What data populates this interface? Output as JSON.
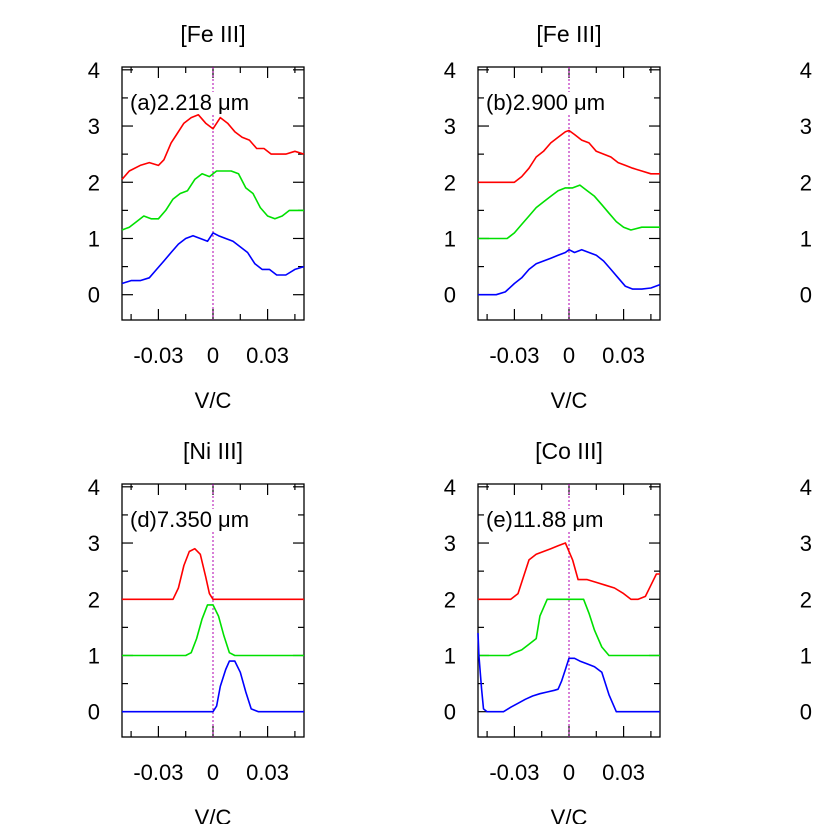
{
  "chart_data": [
    {
      "type": "line",
      "title": "[Fe III]",
      "annotation": "(a)2.218 μm",
      "xlabel": "V/C",
      "ylabel": "",
      "xlim": [
        -0.05,
        0.05
      ],
      "ylim": [
        -0.45,
        4.05
      ],
      "xticks": [
        -0.03,
        0,
        0.03
      ],
      "xtick_labels": [
        "-0.03",
        "0",
        "0.03"
      ],
      "yticks": [
        0,
        1,
        2,
        3,
        4
      ],
      "ytick_labels": [
        "0",
        "1",
        "2",
        "3",
        "4"
      ],
      "reference_line_x": 0,
      "series": [
        {
          "color": "#ff0000",
          "x": [
            -0.05,
            -0.046,
            -0.04,
            -0.035,
            -0.03,
            -0.027,
            -0.023,
            -0.02,
            -0.016,
            -0.012,
            -0.008,
            -0.004,
            0,
            0.004,
            0.008,
            0.012,
            0.016,
            0.02,
            0.024,
            0.028,
            0.032,
            0.036,
            0.04,
            0.045,
            0.05
          ],
          "y": [
            2.05,
            2.2,
            2.3,
            2.35,
            2.3,
            2.4,
            2.7,
            2.85,
            3.05,
            3.15,
            3.2,
            3.05,
            2.95,
            3.15,
            3.05,
            2.9,
            2.8,
            2.75,
            2.6,
            2.6,
            2.5,
            2.5,
            2.5,
            2.55,
            2.5
          ]
        },
        {
          "color": "#00e000",
          "x": [
            -0.05,
            -0.046,
            -0.042,
            -0.038,
            -0.034,
            -0.03,
            -0.026,
            -0.022,
            -0.018,
            -0.014,
            -0.01,
            -0.006,
            -0.002,
            0.002,
            0.006,
            0.01,
            0.014,
            0.018,
            0.022,
            0.026,
            0.03,
            0.034,
            0.038,
            0.042,
            0.046,
            0.05
          ],
          "y": [
            1.15,
            1.2,
            1.3,
            1.4,
            1.35,
            1.35,
            1.5,
            1.7,
            1.8,
            1.85,
            2.05,
            2.15,
            2.1,
            2.2,
            2.2,
            2.2,
            2.15,
            1.9,
            1.8,
            1.55,
            1.4,
            1.35,
            1.4,
            1.5,
            1.5,
            1.5
          ]
        },
        {
          "color": "#0000ff",
          "x": [
            -0.05,
            -0.045,
            -0.04,
            -0.035,
            -0.031,
            -0.027,
            -0.023,
            -0.019,
            -0.015,
            -0.011,
            -0.007,
            -0.003,
            0,
            0.003,
            0.007,
            0.011,
            0.015,
            0.019,
            0.023,
            0.027,
            0.031,
            0.035,
            0.04,
            0.045,
            0.05
          ],
          "y": [
            0.2,
            0.25,
            0.25,
            0.3,
            0.45,
            0.6,
            0.75,
            0.9,
            1.0,
            1.05,
            1.0,
            0.95,
            1.1,
            1.05,
            1.0,
            0.95,
            0.85,
            0.75,
            0.55,
            0.45,
            0.45,
            0.35,
            0.35,
            0.45,
            0.5
          ]
        }
      ]
    },
    {
      "type": "line",
      "title": "[Fe III]",
      "annotation": "(b)2.900 μm",
      "xlabel": "V/C",
      "ylabel": "",
      "xlim": [
        -0.05,
        0.05
      ],
      "ylim": [
        -0.45,
        4.05
      ],
      "xticks": [
        -0.03,
        0,
        0.03
      ],
      "xtick_labels": [
        "-0.03",
        "0",
        "0.03"
      ],
      "yticks": [
        0,
        1,
        2,
        3,
        4
      ],
      "ytick_labels": [
        "0",
        "1",
        "2",
        "3",
        "4"
      ],
      "reference_line_x": 0,
      "series": [
        {
          "color": "#ff0000",
          "x": [
            -0.05,
            -0.04,
            -0.03,
            -0.026,
            -0.022,
            -0.018,
            -0.014,
            -0.01,
            -0.006,
            -0.002,
            0,
            0.003,
            0.007,
            0.011,
            0.015,
            0.019,
            0.023,
            0.027,
            0.031,
            0.035,
            0.04,
            0.045,
            0.05
          ],
          "y": [
            2.0,
            2.0,
            2.0,
            2.1,
            2.25,
            2.45,
            2.55,
            2.7,
            2.8,
            2.9,
            2.92,
            2.85,
            2.75,
            2.7,
            2.55,
            2.5,
            2.45,
            2.35,
            2.3,
            2.25,
            2.2,
            2.15,
            2.15
          ]
        },
        {
          "color": "#00e000",
          "x": [
            -0.05,
            -0.04,
            -0.034,
            -0.03,
            -0.026,
            -0.022,
            -0.018,
            -0.014,
            -0.01,
            -0.006,
            -0.002,
            0.002,
            0.006,
            0.01,
            0.014,
            0.018,
            0.022,
            0.026,
            0.03,
            0.034,
            0.04,
            0.045,
            0.05
          ],
          "y": [
            1.0,
            1.0,
            1.0,
            1.1,
            1.25,
            1.4,
            1.55,
            1.65,
            1.75,
            1.85,
            1.9,
            1.9,
            1.95,
            1.85,
            1.75,
            1.6,
            1.45,
            1.3,
            1.2,
            1.15,
            1.2,
            1.2,
            1.2
          ]
        },
        {
          "color": "#0000ff",
          "x": [
            -0.05,
            -0.04,
            -0.035,
            -0.03,
            -0.026,
            -0.022,
            -0.018,
            -0.014,
            -0.01,
            -0.006,
            -0.002,
            0,
            0.003,
            0.007,
            0.011,
            0.015,
            0.019,
            0.023,
            0.027,
            0.031,
            0.035,
            0.04,
            0.045,
            0.05
          ],
          "y": [
            0.0,
            0.0,
            0.05,
            0.2,
            0.3,
            0.45,
            0.55,
            0.6,
            0.65,
            0.7,
            0.75,
            0.8,
            0.75,
            0.8,
            0.75,
            0.7,
            0.6,
            0.45,
            0.3,
            0.15,
            0.1,
            0.1,
            0.12,
            0.18
          ]
        }
      ]
    },
    {
      "type": "line",
      "title": "[Ni III]",
      "annotation": "(d)7.350 μm",
      "xlabel": "V/C",
      "ylabel": "",
      "xlim": [
        -0.05,
        0.05
      ],
      "ylim": [
        -0.45,
        4.05
      ],
      "xticks": [
        -0.03,
        0,
        0.03
      ],
      "xtick_labels": [
        "-0.03",
        "0",
        "0.03"
      ],
      "yticks": [
        0,
        1,
        2,
        3,
        4
      ],
      "ytick_labels": [
        "0",
        "1",
        "2",
        "3",
        "4"
      ],
      "reference_line_x": 0,
      "series": [
        {
          "color": "#ff0000",
          "x": [
            -0.05,
            -0.03,
            -0.022,
            -0.019,
            -0.016,
            -0.013,
            -0.01,
            -0.007,
            -0.004,
            -0.002,
            0,
            0.002,
            0.01,
            0.03,
            0.05
          ],
          "y": [
            2.0,
            2.0,
            2.0,
            2.2,
            2.6,
            2.85,
            2.9,
            2.8,
            2.4,
            2.1,
            2.0,
            2.0,
            2.0,
            2.0,
            2.0
          ]
        },
        {
          "color": "#00e000",
          "x": [
            -0.05,
            -0.03,
            -0.015,
            -0.012,
            -0.009,
            -0.006,
            -0.003,
            0,
            0.003,
            0.006,
            0.009,
            0.012,
            0.03,
            0.05
          ],
          "y": [
            1.0,
            1.0,
            1.0,
            1.05,
            1.3,
            1.65,
            1.9,
            1.9,
            1.7,
            1.35,
            1.05,
            1.0,
            1.0,
            1.0
          ]
        },
        {
          "color": "#0000ff",
          "x": [
            -0.05,
            -0.03,
            -0.01,
            0,
            0.002,
            0.004,
            0.007,
            0.009,
            0.012,
            0.015,
            0.018,
            0.021,
            0.025,
            0.03,
            0.05
          ],
          "y": [
            0.0,
            0.0,
            0.0,
            0.0,
            0.1,
            0.45,
            0.75,
            0.9,
            0.9,
            0.7,
            0.35,
            0.05,
            0.0,
            0.0,
            0.0
          ]
        }
      ]
    },
    {
      "type": "line",
      "title": "[Co III]",
      "annotation": "(e)11.88 μm",
      "xlabel": "V/C",
      "ylabel": "",
      "xlim": [
        -0.05,
        0.05
      ],
      "ylim": [
        -0.45,
        4.05
      ],
      "xticks": [
        -0.03,
        0,
        0.03
      ],
      "xtick_labels": [
        "-0.03",
        "0",
        "0.03"
      ],
      "yticks": [
        0,
        1,
        2,
        3,
        4
      ],
      "ytick_labels": [
        "0",
        "1",
        "2",
        "3",
        "4"
      ],
      "reference_line_x": 0,
      "series": [
        {
          "color": "#ff0000",
          "x": [
            -0.05,
            -0.04,
            -0.032,
            -0.028,
            -0.025,
            -0.022,
            -0.018,
            -0.014,
            -0.01,
            -0.006,
            -0.002,
            0.002,
            0.005,
            0.01,
            0.015,
            0.02,
            0.025,
            0.03,
            0.034,
            0.038,
            0.042,
            0.045,
            0.048,
            0.05
          ],
          "y": [
            2.0,
            2.0,
            2.0,
            2.1,
            2.4,
            2.7,
            2.8,
            2.85,
            2.9,
            2.95,
            3.0,
            2.7,
            2.35,
            2.35,
            2.3,
            2.25,
            2.2,
            2.1,
            2.0,
            2.0,
            2.05,
            2.25,
            2.45,
            2.45
          ]
        },
        {
          "color": "#00e000",
          "x": [
            -0.05,
            -0.04,
            -0.033,
            -0.03,
            -0.026,
            -0.022,
            -0.018,
            -0.016,
            -0.012,
            -0.008,
            -0.004,
            0,
            0.004,
            0.008,
            0.011,
            0.014,
            0.018,
            0.022,
            0.026,
            0.03,
            0.035,
            0.04,
            0.045,
            0.05
          ],
          "y": [
            1.0,
            1.0,
            1.0,
            1.05,
            1.1,
            1.2,
            1.3,
            1.7,
            2.0,
            2.0,
            2.0,
            2.0,
            2.0,
            2.0,
            1.75,
            1.45,
            1.15,
            1.0,
            1.0,
            1.0,
            1.0,
            1.0,
            1.0,
            1.0
          ]
        },
        {
          "color": "#0000ff",
          "x": [
            -0.05,
            -0.0495,
            -0.048,
            -0.047,
            -0.045,
            -0.04,
            -0.036,
            -0.032,
            -0.028,
            -0.024,
            -0.02,
            -0.016,
            -0.012,
            -0.008,
            -0.006,
            -0.004,
            -0.002,
            0,
            0.003,
            0.006,
            0.01,
            0.014,
            0.018,
            0.022,
            0.026,
            0.03,
            0.04,
            0.05
          ],
          "y": [
            1.4,
            1.0,
            0.4,
            0.05,
            0.0,
            0.0,
            0.0,
            0.08,
            0.15,
            0.22,
            0.28,
            0.32,
            0.35,
            0.38,
            0.4,
            0.55,
            0.75,
            0.95,
            0.95,
            0.9,
            0.85,
            0.8,
            0.7,
            0.3,
            0.0,
            0.0,
            0.0,
            0.0
          ]
        }
      ]
    },
    {
      "type": "line",
      "title": "",
      "annotation": "",
      "xlabel": "",
      "ylabel": "",
      "ylim": [
        -0.45,
        4.05
      ],
      "yticks": [
        0,
        1,
        2,
        3,
        4
      ],
      "ytick_labels": [
        "0",
        "1",
        "2",
        "3",
        "4"
      ],
      "series": []
    },
    {
      "type": "line",
      "title": "",
      "annotation": "",
      "xlabel": "",
      "ylabel": "",
      "ylim": [
        -0.45,
        4.05
      ],
      "yticks": [
        0,
        1,
        2,
        3,
        4
      ],
      "ytick_labels": [
        "0",
        "1",
        "2",
        "3",
        "4"
      ],
      "series": []
    }
  ]
}
